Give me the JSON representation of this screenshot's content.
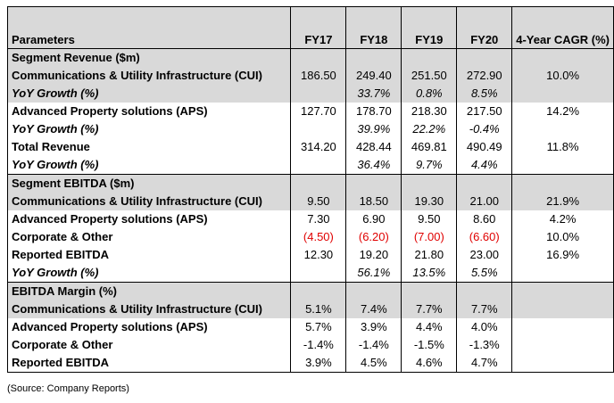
{
  "header": {
    "parameters": "Parameters",
    "fy17": "FY17",
    "fy18": "FY18",
    "fy19": "FY19",
    "fy20": "FY20",
    "cagr": "4-Year CAGR (%)"
  },
  "sections": {
    "revenue": {
      "title": "Segment Revenue ($m)",
      "rows": [
        {
          "label": "Communications & Utility Infrastructure (CUI)",
          "v": [
            "186.50",
            "249.40",
            "251.50",
            "272.90",
            "10.0%"
          ]
        },
        {
          "label": "YoY Growth (%)",
          "v": [
            "",
            "33.7%",
            "0.8%",
            "8.5%",
            ""
          ]
        },
        {
          "label": "Advanced Property solutions (APS)",
          "v": [
            "127.70",
            "178.70",
            "218.30",
            "217.50",
            "14.2%"
          ]
        },
        {
          "label": "YoY Growth (%)",
          "v": [
            "",
            "39.9%",
            "22.2%",
            "-0.4%",
            ""
          ]
        },
        {
          "label": "Total Revenue",
          "v": [
            "314.20",
            "428.44",
            "469.81",
            "490.49",
            "11.8%"
          ]
        },
        {
          "label": "YoY Growth (%)",
          "v": [
            "",
            "36.4%",
            "9.7%",
            "4.4%",
            ""
          ]
        }
      ]
    },
    "ebitda": {
      "title": "Segment EBITDA ($m)",
      "rows": [
        {
          "label": "Communications & Utility Infrastructure (CUI)",
          "v": [
            "9.50",
            "18.50",
            "19.30",
            "21.00",
            "21.9%"
          ]
        },
        {
          "label": "Advanced Property solutions (APS)",
          "v": [
            "7.30",
            "6.90",
            "9.50",
            "8.60",
            "4.2%"
          ]
        },
        {
          "label": "Corporate & Other",
          "v": [
            "(4.50)",
            "(6.20)",
            "(7.00)",
            "(6.60)",
            "10.0%"
          ]
        },
        {
          "label": "Reported EBITDA",
          "v": [
            "12.30",
            "19.20",
            "21.80",
            "23.00",
            "16.9%"
          ]
        },
        {
          "label": "YoY Growth (%)",
          "v": [
            "",
            "56.1%",
            "13.5%",
            "5.5%",
            ""
          ]
        }
      ]
    },
    "margin": {
      "title": "EBITDA Margin (%)",
      "rows": [
        {
          "label": "Communications & Utility Infrastructure (CUI)",
          "v": [
            "5.1%",
            "7.4%",
            "7.7%",
            "7.7%",
            ""
          ]
        },
        {
          "label": "Advanced Property solutions (APS)",
          "v": [
            "5.7%",
            "3.9%",
            "4.4%",
            "4.0%",
            ""
          ]
        },
        {
          "label": "Corporate & Other",
          "v": [
            "-1.4%",
            "-1.4%",
            "-1.5%",
            "-1.3%",
            ""
          ]
        },
        {
          "label": "Reported EBITDA",
          "v": [
            "3.9%",
            "4.5%",
            "4.6%",
            "4.7%",
            ""
          ]
        }
      ]
    }
  },
  "source": "(Source: Company Reports)"
}
